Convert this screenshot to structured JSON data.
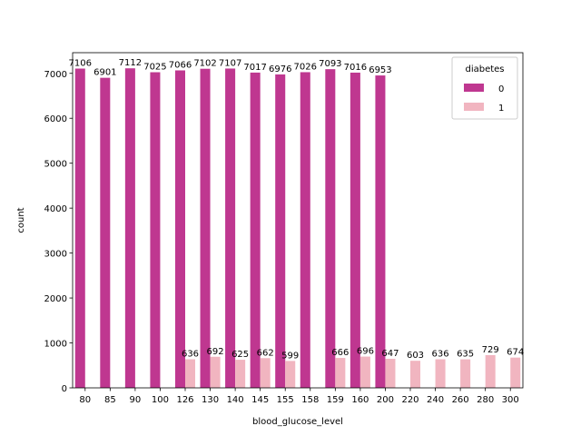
{
  "chart_data": {
    "type": "bar",
    "xlabel": "blood_glucose_level",
    "ylabel": "count",
    "ylim": [
      0,
      7460
    ],
    "yticks": [
      0,
      1000,
      2000,
      3000,
      4000,
      5000,
      6000,
      7000
    ],
    "categories": [
      "80",
      "85",
      "90",
      "100",
      "126",
      "130",
      "140",
      "145",
      "155",
      "158",
      "159",
      "160",
      "200",
      "220",
      "240",
      "260",
      "280",
      "300"
    ],
    "legend": {
      "title": "diabetes",
      "position": "upper right"
    },
    "grid": false,
    "series": [
      {
        "name": "0",
        "color": "#bf3790",
        "values": [
          7106,
          6901,
          7112,
          7025,
          7066,
          7102,
          7107,
          7017,
          6976,
          7026,
          7093,
          7016,
          6953,
          null,
          null,
          null,
          null,
          null
        ],
        "labels": [
          "7106",
          "6901",
          "7112",
          "7025",
          "7066",
          "7102",
          "7107",
          "7017",
          "6976",
          "7026",
          "7093",
          "7016",
          "6953",
          null,
          null,
          null,
          null,
          null
        ]
      },
      {
        "name": "1",
        "color": "#f1b5c0",
        "values": [
          null,
          null,
          null,
          null,
          636,
          692,
          625,
          662,
          599,
          null,
          666,
          696,
          647,
          603,
          636,
          635,
          729,
          674
        ],
        "labels": [
          null,
          null,
          null,
          null,
          "636",
          "692",
          "625",
          "662",
          "599",
          null,
          "666",
          "696",
          "647",
          "603",
          "636",
          "635",
          "729",
          "674"
        ]
      }
    ]
  }
}
